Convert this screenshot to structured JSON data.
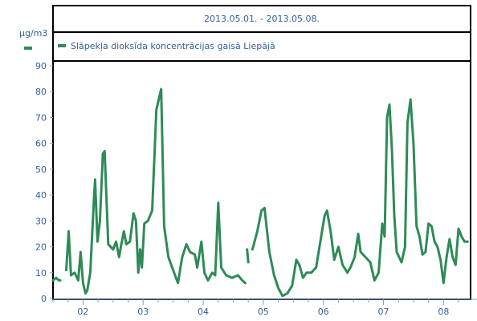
{
  "chart_data": {
    "type": "line",
    "title": "2013.05.01. - 2013.05.08.",
    "ylabel": "µg/m3",
    "xlabel": "",
    "ylim": [
      0,
      90
    ],
    "yticks": [
      "0",
      "10",
      "20",
      "30",
      "40",
      "50",
      "60",
      "70",
      "80",
      "90"
    ],
    "xlim": [
      1.5,
      8.45
    ],
    "xticks": [
      {
        "x": 2,
        "label": "02"
      },
      {
        "x": 3,
        "label": "03"
      },
      {
        "x": 4,
        "label": "04"
      },
      {
        "x": 5,
        "label": "05"
      },
      {
        "x": 6,
        "label": "06"
      },
      {
        "x": 7,
        "label": "07"
      },
      {
        "x": 8,
        "label": "08"
      }
    ],
    "grid": false,
    "legend_position": "top",
    "series": [
      {
        "name": "Slāpekļa dioksīda koncentrācijas gaisā Liepājā",
        "color": "#2e8b57",
        "segments": [
          [
            [
              1.5,
              7
            ],
            [
              1.55,
              8
            ],
            [
              1.6,
              7
            ],
            [
              1.62,
              7
            ]
          ],
          [
            [
              1.72,
              11
            ],
            [
              1.76,
              26
            ],
            [
              1.8,
              9
            ],
            [
              1.86,
              10
            ],
            [
              1.92,
              7
            ],
            [
              1.96,
              18
            ],
            [
              2.0,
              6
            ],
            [
              2.04,
              2
            ],
            [
              2.07,
              3
            ],
            [
              2.12,
              10
            ],
            [
              2.18,
              38
            ],
            [
              2.2,
              46
            ],
            [
              2.24,
              22
            ],
            [
              2.28,
              30
            ],
            [
              2.33,
              56
            ],
            [
              2.36,
              57
            ],
            [
              2.42,
              21
            ],
            [
              2.5,
              19
            ],
            [
              2.55,
              22
            ],
            [
              2.6,
              16
            ],
            [
              2.63,
              20
            ],
            [
              2.68,
              26
            ],
            [
              2.72,
              21
            ],
            [
              2.78,
              22
            ],
            [
              2.84,
              33
            ],
            [
              2.88,
              30
            ],
            [
              2.92,
              10
            ],
            [
              2.95,
              19
            ],
            [
              2.98,
              12
            ],
            [
              3.02,
              29
            ],
            [
              3.08,
              30
            ],
            [
              3.15,
              34
            ],
            [
              3.22,
              73
            ],
            [
              3.3,
              81
            ],
            [
              3.35,
              28
            ],
            [
              3.42,
              16
            ],
            [
              3.5,
              11
            ],
            [
              3.58,
              6
            ],
            [
              3.65,
              16
            ],
            [
              3.72,
              21
            ],
            [
              3.78,
              18
            ],
            [
              3.86,
              17
            ],
            [
              3.9,
              12
            ],
            [
              3.97,
              22
            ],
            [
              4.02,
              10
            ],
            [
              4.08,
              7
            ],
            [
              4.15,
              10
            ],
            [
              4.2,
              9
            ],
            [
              4.25,
              37
            ],
            [
              4.3,
              12
            ],
            [
              4.38,
              9
            ],
            [
              4.48,
              8
            ],
            [
              4.58,
              9
            ],
            [
              4.65,
              7
            ],
            [
              4.7,
              6
            ]
          ],
          [
            [
              4.73,
              19
            ],
            [
              4.75,
              14
            ]
          ],
          [
            [
              4.82,
              19
            ],
            [
              4.9,
              26
            ],
            [
              4.97,
              34
            ],
            [
              5.02,
              35
            ],
            [
              5.1,
              18
            ],
            [
              5.18,
              9
            ],
            [
              5.25,
              4
            ],
            [
              5.32,
              1
            ],
            [
              5.4,
              2
            ],
            [
              5.48,
              5
            ],
            [
              5.55,
              15
            ],
            [
              5.6,
              13
            ],
            [
              5.66,
              8
            ],
            [
              5.72,
              10
            ],
            [
              5.8,
              10
            ],
            [
              5.88,
              12
            ],
            [
              5.95,
              22
            ],
            [
              6.02,
              32
            ],
            [
              6.06,
              34
            ],
            [
              6.12,
              26
            ],
            [
              6.18,
              15
            ],
            [
              6.25,
              20
            ],
            [
              6.32,
              13
            ],
            [
              6.4,
              10
            ],
            [
              6.45,
              12
            ],
            [
              6.52,
              16
            ],
            [
              6.58,
              25
            ],
            [
              6.62,
              18
            ],
            [
              6.7,
              16
            ],
            [
              6.78,
              14
            ],
            [
              6.85,
              7
            ],
            [
              6.92,
              10
            ],
            [
              6.98,
              29
            ],
            [
              7.02,
              24
            ],
            [
              7.06,
              70
            ],
            [
              7.1,
              75
            ],
            [
              7.14,
              58
            ],
            [
              7.18,
              32
            ],
            [
              7.22,
              18
            ],
            [
              7.26,
              16
            ],
            [
              7.3,
              14
            ],
            [
              7.36,
              20
            ],
            [
              7.4,
              68
            ],
            [
              7.45,
              77
            ],
            [
              7.5,
              60
            ],
            [
              7.55,
              28
            ],
            [
              7.6,
              24
            ],
            [
              7.65,
              17
            ],
            [
              7.7,
              18
            ],
            [
              7.75,
              29
            ],
            [
              7.8,
              28
            ],
            [
              7.85,
              22
            ],
            [
              7.9,
              20
            ],
            [
              7.95,
              15
            ],
            [
              8.0,
              6
            ],
            [
              8.05,
              16
            ],
            [
              8.1,
              23
            ],
            [
              8.15,
              16
            ],
            [
              8.2,
              13
            ],
            [
              8.25,
              27
            ],
            [
              8.3,
              24
            ],
            [
              8.35,
              22
            ],
            [
              8.4,
              22
            ]
          ]
        ]
      }
    ]
  }
}
